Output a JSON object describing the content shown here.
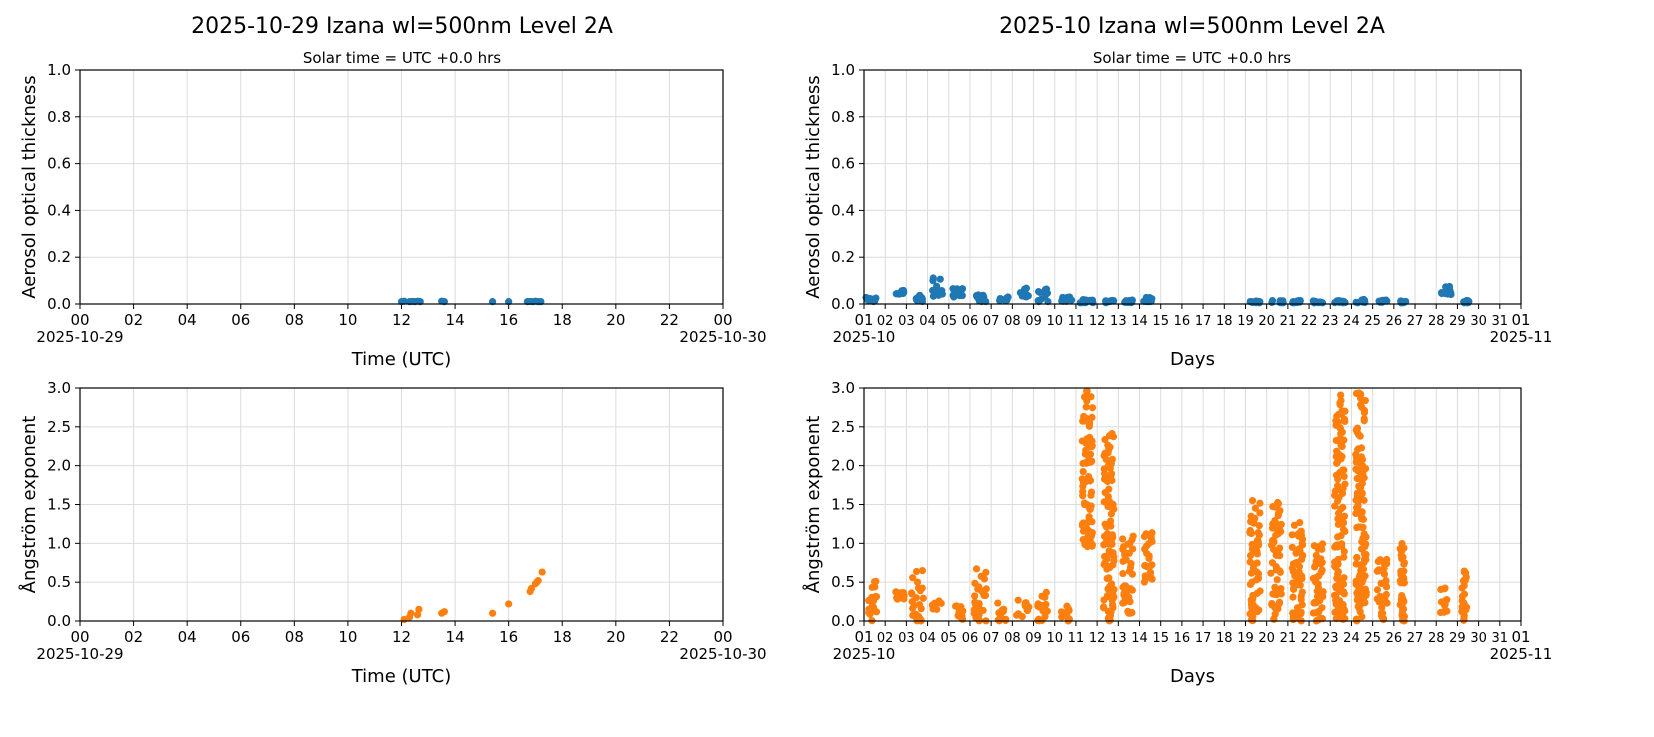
{
  "colors": {
    "aod": "#1f77b4",
    "angstrom": "#ff7f0e",
    "grid": "#dcdcdc"
  },
  "chart_data": [
    {
      "type": "scatter",
      "panel": "daily-aod",
      "title": "2025-10-29  Izana  wl=500nm  Level 2A",
      "subtitle": "Solar time = UTC +0.0 hrs",
      "xlabel": "Time (UTC)",
      "ylabel": "Aerosol optical thickness",
      "xlim": [
        0,
        24
      ],
      "ylim": [
        0,
        1
      ],
      "xticks": [
        "00",
        "02",
        "04",
        "06",
        "08",
        "10",
        "12",
        "14",
        "16",
        "18",
        "20",
        "22",
        "00"
      ],
      "xdate_left": "2025-10-29",
      "xdate_right": "2025-10-30",
      "yticks": [
        "0.0",
        "0.2",
        "0.4",
        "0.6",
        "0.8",
        "1.0"
      ],
      "points": [
        [
          12.0,
          0.01
        ],
        [
          12.1,
          0.012
        ],
        [
          12.3,
          0.01
        ],
        [
          12.4,
          0.011
        ],
        [
          12.5,
          0.01
        ],
        [
          12.6,
          0.012
        ],
        [
          12.7,
          0.01
        ],
        [
          13.5,
          0.012
        ],
        [
          13.6,
          0.01
        ],
        [
          15.4,
          0.01
        ],
        [
          16.0,
          0.01
        ],
        [
          16.7,
          0.01
        ],
        [
          16.8,
          0.011
        ],
        [
          16.9,
          0.01
        ],
        [
          17.0,
          0.012
        ],
        [
          17.1,
          0.01
        ],
        [
          17.2,
          0.01
        ]
      ]
    },
    {
      "type": "scatter",
      "panel": "monthly-aod",
      "title": "2025-10  Izana  wl=500nm  Level 2A",
      "subtitle": "Solar time = UTC +0.0 hrs",
      "xlabel": "Days",
      "ylabel": "Aerosol optical thickness",
      "xlim": [
        1,
        32
      ],
      "ylim": [
        0,
        1
      ],
      "xticks": [
        "01",
        "02",
        "03",
        "04",
        "05",
        "06",
        "07",
        "08",
        "09",
        "10",
        "11",
        "12",
        "13",
        "14",
        "15",
        "16",
        "17",
        "18",
        "19",
        "20",
        "21",
        "22",
        "23",
        "24",
        "25",
        "26",
        "27",
        "28",
        "29",
        "30",
        "31",
        "01"
      ],
      "xdate_left": "2025-10",
      "xdate_right": "2025-11",
      "yticks": [
        "0.0",
        "0.2",
        "0.4",
        "0.6",
        "0.8",
        "1.0"
      ],
      "clusters": [
        [
          1.1,
          1.6,
          0.01,
          0.03
        ],
        [
          2.5,
          2.9,
          0.04,
          0.06
        ],
        [
          3.3,
          3.8,
          0.01,
          0.04
        ],
        [
          4.2,
          4.7,
          0.03,
          0.12
        ],
        [
          5.2,
          5.7,
          0.03,
          0.07
        ],
        [
          6.3,
          6.8,
          0.01,
          0.04
        ],
        [
          7.3,
          7.8,
          0.01,
          0.03
        ],
        [
          8.2,
          8.8,
          0.03,
          0.07
        ],
        [
          9.2,
          9.7,
          0.01,
          0.07
        ],
        [
          10.3,
          10.8,
          0.01,
          0.03
        ],
        [
          11.2,
          11.8,
          0.005,
          0.02
        ],
        [
          12.2,
          12.8,
          0.005,
          0.015
        ],
        [
          13.2,
          13.7,
          0.005,
          0.02
        ],
        [
          14.2,
          14.6,
          0.01,
          0.03
        ],
        [
          19.2,
          19.7,
          0.005,
          0.015
        ],
        [
          20.2,
          20.8,
          0.005,
          0.015
        ],
        [
          21.2,
          21.7,
          0.005,
          0.015
        ],
        [
          22.2,
          22.7,
          0.005,
          0.015
        ],
        [
          23.2,
          23.7,
          0.005,
          0.015
        ],
        [
          24.2,
          24.7,
          0.005,
          0.02
        ],
        [
          25.2,
          25.7,
          0.005,
          0.02
        ],
        [
          26.3,
          26.6,
          0.005,
          0.015
        ],
        [
          28.2,
          28.7,
          0.04,
          0.08
        ],
        [
          29.2,
          29.6,
          0.005,
          0.015
        ]
      ]
    },
    {
      "type": "scatter",
      "panel": "daily-angstrom",
      "xlabel": "Time (UTC)",
      "ylabel": "Ångström exponent",
      "xlim": [
        0,
        24
      ],
      "ylim": [
        0,
        3
      ],
      "xticks": [
        "00",
        "02",
        "04",
        "06",
        "08",
        "10",
        "12",
        "14",
        "16",
        "18",
        "20",
        "22",
        "00"
      ],
      "xdate_left": "2025-10-29",
      "xdate_right": "2025-10-30",
      "yticks": [
        "0.0",
        "0.5",
        "1.0",
        "1.5",
        "2.0",
        "2.5",
        "3.0"
      ],
      "points": [
        [
          12.1,
          0.02
        ],
        [
          12.3,
          0.05
        ],
        [
          12.35,
          0.1
        ],
        [
          12.6,
          0.08
        ],
        [
          12.65,
          0.15
        ],
        [
          13.5,
          0.1
        ],
        [
          13.6,
          0.12
        ],
        [
          15.4,
          0.1
        ],
        [
          16.0,
          0.22
        ],
        [
          16.8,
          0.38
        ],
        [
          16.85,
          0.42
        ],
        [
          17.0,
          0.48
        ],
        [
          17.05,
          0.5
        ],
        [
          17.1,
          0.52
        ],
        [
          17.25,
          0.63
        ]
      ]
    },
    {
      "type": "scatter",
      "panel": "monthly-angstrom",
      "xlabel": "Days",
      "ylabel": "Ångström exponent",
      "xlim": [
        1,
        32
      ],
      "ylim": [
        0,
        3
      ],
      "xticks": [
        "01",
        "02",
        "03",
        "04",
        "05",
        "06",
        "07",
        "08",
        "09",
        "10",
        "11",
        "12",
        "13",
        "14",
        "15",
        "16",
        "17",
        "18",
        "19",
        "20",
        "21",
        "22",
        "23",
        "24",
        "25",
        "26",
        "27",
        "28",
        "29",
        "30",
        "31",
        "01"
      ],
      "xdate_left": "2025-10",
      "xdate_right": "2025-11",
      "yticks": [
        "0.0",
        "0.5",
        "1.0",
        "1.5",
        "2.0",
        "2.5",
        "3.0"
      ],
      "clusters": [
        [
          1.2,
          1.6,
          0,
          0.55
        ],
        [
          2.5,
          2.9,
          0.28,
          0.4
        ],
        [
          3.2,
          3.8,
          0,
          0.65
        ],
        [
          4.2,
          4.7,
          0.15,
          0.28
        ],
        [
          5.2,
          5.7,
          0,
          0.2
        ],
        [
          6.2,
          6.8,
          0,
          0.7
        ],
        [
          7.3,
          7.7,
          0,
          0.25
        ],
        [
          8.2,
          8.8,
          0,
          0.3
        ],
        [
          9.2,
          9.7,
          0,
          0.45
        ],
        [
          10.3,
          10.7,
          0,
          0.2
        ],
        [
          11.3,
          11.8,
          0.95,
          3.0
        ],
        [
          12.3,
          12.8,
          0,
          2.45
        ],
        [
          13.2,
          13.7,
          0.1,
          1.1
        ],
        [
          14.2,
          14.6,
          0.5,
          1.15
        ],
        [
          19.2,
          19.7,
          0,
          1.6
        ],
        [
          20.2,
          20.7,
          0,
          1.55
        ],
        [
          21.2,
          21.7,
          0,
          1.3
        ],
        [
          22.2,
          22.7,
          0,
          1.05
        ],
        [
          23.2,
          23.7,
          0,
          3.0
        ],
        [
          24.2,
          24.7,
          0,
          2.95
        ],
        [
          25.2,
          25.7,
          0,
          0.8
        ],
        [
          26.3,
          26.5,
          0,
          1.05
        ],
        [
          28.2,
          28.6,
          0.1,
          0.45
        ],
        [
          29.2,
          29.5,
          0,
          0.65
        ]
      ]
    }
  ]
}
